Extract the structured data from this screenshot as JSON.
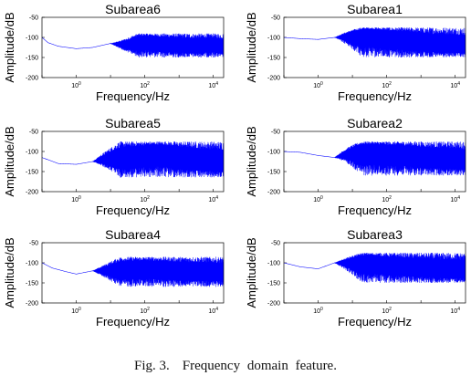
{
  "chart_data": [
    {
      "type": "line",
      "title": "Subarea6",
      "xlabel": "Frequency/Hz",
      "ylabel": "Amplitude/dB",
      "x_scale": "log",
      "xlim": [
        0.1,
        20000
      ],
      "ylim": [
        -200,
        -50
      ],
      "y_ticks": [
        -50,
        -100,
        -150,
        -200
      ],
      "x_ticks": [
        "10^0",
        "10^2",
        "10^4"
      ],
      "grid": false,
      "series": [
        {
          "color": "#0000ff",
          "x": [
            0.1,
            0.15,
            0.3,
            1,
            3,
            10,
            30,
            100,
            300,
            1000,
            3000,
            10000,
            20000
          ],
          "values": [
            -100,
            -113,
            -122,
            -128,
            -125,
            -115,
            -118,
            -105,
            -112,
            -118,
            -122,
            -115,
            -128
          ],
          "noise_from_hz": 10,
          "noise_amplitude_db": [
            -150,
            -90
          ]
        }
      ]
    },
    {
      "type": "line",
      "title": "Subarea1",
      "xlabel": "Frequency/Hz",
      "ylabel": "Amplitude/dB",
      "x_scale": "log",
      "xlim": [
        0.1,
        20000
      ],
      "ylim": [
        -200,
        -50
      ],
      "y_ticks": [
        -50,
        -100,
        -150,
        -200
      ],
      "x_ticks": [
        "10^0",
        "10^2",
        "10^4"
      ],
      "grid": false,
      "series": [
        {
          "color": "#0000ff",
          "x": [
            0.1,
            0.3,
            1,
            3,
            10,
            30,
            100,
            300,
            1000,
            3000,
            10000,
            20000
          ],
          "values": [
            -100,
            -103,
            -105,
            -100,
            -92,
            -85,
            -95,
            -100,
            -110,
            -118,
            -120,
            -125
          ],
          "noise_from_hz": 3,
          "noise_amplitude_db": [
            -150,
            -75
          ]
        }
      ]
    },
    {
      "type": "line",
      "title": "Subarea5",
      "xlabel": "Frequency/Hz",
      "ylabel": "Amplitude/dB",
      "x_scale": "log",
      "xlim": [
        0.1,
        20000
      ],
      "ylim": [
        -200,
        -50
      ],
      "y_ticks": [
        -50,
        -100,
        -150,
        -200
      ],
      "x_ticks": [
        "10^0",
        "10^2",
        "10^4"
      ],
      "grid": false,
      "series": [
        {
          "color": "#0000ff",
          "x": [
            0.1,
            0.3,
            1,
            3,
            10,
            30,
            100,
            300,
            1000,
            3000,
            10000,
            20000
          ],
          "values": [
            -115,
            -130,
            -132,
            -125,
            -118,
            -110,
            -100,
            -95,
            -110,
            -118,
            -125,
            -130
          ],
          "noise_from_hz": 3,
          "noise_amplitude_db": [
            -165,
            -75
          ]
        }
      ]
    },
    {
      "type": "line",
      "title": "Subarea2",
      "xlabel": "Frequency/Hz",
      "ylabel": "Amplitude/dB",
      "x_scale": "log",
      "xlim": [
        0.1,
        20000
      ],
      "ylim": [
        -200,
        -50
      ],
      "y_ticks": [
        -50,
        -100,
        -150,
        -200
      ],
      "x_ticks": [
        "10^0",
        "10^2",
        "10^4"
      ],
      "grid": false,
      "series": [
        {
          "color": "#0000ff",
          "x": [
            0.1,
            0.3,
            1,
            3,
            10,
            30,
            100,
            300,
            1000,
            3000,
            10000,
            20000
          ],
          "values": [
            -100,
            -102,
            -110,
            -115,
            -100,
            -90,
            -98,
            -100,
            -110,
            -115,
            -118,
            -125
          ],
          "noise_from_hz": 3,
          "noise_amplitude_db": [
            -160,
            -75
          ]
        }
      ]
    },
    {
      "type": "line",
      "title": "Subarea4",
      "xlabel": "Frequency/Hz",
      "ylabel": "Amplitude/dB",
      "x_scale": "log",
      "xlim": [
        0.1,
        20000
      ],
      "ylim": [
        -200,
        -50
      ],
      "y_ticks": [
        -50,
        -100,
        -150,
        -200
      ],
      "x_ticks": [
        "10^0",
        "10^2",
        "10^4"
      ],
      "grid": false,
      "series": [
        {
          "color": "#0000ff",
          "x": [
            0.1,
            0.2,
            0.5,
            1,
            3,
            10,
            30,
            100,
            300,
            1000,
            3000,
            10000,
            20000
          ],
          "values": [
            -100,
            -113,
            -122,
            -128,
            -120,
            -118,
            -112,
            -108,
            -112,
            -118,
            -120,
            -122,
            -125
          ],
          "noise_from_hz": 3,
          "noise_amplitude_db": [
            -160,
            -85
          ]
        }
      ]
    },
    {
      "type": "line",
      "title": "Subarea3",
      "xlabel": "Frequency/Hz",
      "ylabel": "Amplitude/dB",
      "x_scale": "log",
      "xlim": [
        0.1,
        20000
      ],
      "ylim": [
        -200,
        -50
      ],
      "y_ticks": [
        -50,
        -100,
        -150,
        -200
      ],
      "x_ticks": [
        "10^0",
        "10^2",
        "10^4"
      ],
      "grid": false,
      "series": [
        {
          "color": "#0000ff",
          "x": [
            0.1,
            0.3,
            1,
            3,
            10,
            30,
            100,
            300,
            1000,
            3000,
            10000,
            20000
          ],
          "values": [
            -100,
            -110,
            -115,
            -100,
            -95,
            -90,
            -100,
            -105,
            -110,
            -118,
            -120,
            -122
          ],
          "noise_from_hz": 3,
          "noise_amplitude_db": [
            -150,
            -75
          ]
        }
      ]
    }
  ],
  "caption": {
    "number": "Fig. 3.",
    "text": "Frequency domain feature."
  }
}
